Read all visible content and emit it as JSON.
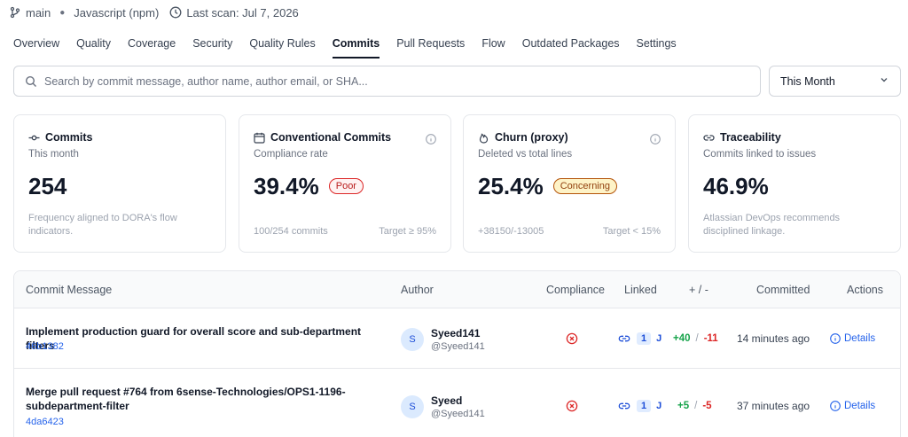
{
  "meta": {
    "branch": "main",
    "language": "Javascript (npm)",
    "last_scan": "Last scan: Jul 7, 2026"
  },
  "tabs": [
    {
      "label": "Overview"
    },
    {
      "label": "Quality"
    },
    {
      "label": "Coverage"
    },
    {
      "label": "Security"
    },
    {
      "label": "Quality Rules"
    },
    {
      "label": "Commits",
      "active": true
    },
    {
      "label": "Pull Requests"
    },
    {
      "label": "Flow"
    },
    {
      "label": "Outdated Packages"
    },
    {
      "label": "Settings"
    }
  ],
  "search": {
    "placeholder": "Search by commit message, author name, author email, or SHA...",
    "value": ""
  },
  "period": {
    "selected": "This Month"
  },
  "cards": {
    "commits": {
      "title": "Commits",
      "subtitle": "This month",
      "value": "254",
      "note": "Frequency aligned to DORA's flow indicators."
    },
    "conventional": {
      "title": "Conventional Commits",
      "subtitle": "Compliance rate",
      "value": "39.4%",
      "badge": "Poor",
      "foot_left": "100/254 commits",
      "foot_right": "Target ≥ 95%"
    },
    "churn": {
      "title": "Churn (proxy)",
      "subtitle": "Deleted vs total lines",
      "value": "25.4%",
      "badge": "Concerning",
      "foot_left": "+38150/-13005",
      "foot_right": "Target < 15%"
    },
    "traceability": {
      "title": "Traceability",
      "subtitle": "Commits linked to issues",
      "value": "46.9%",
      "note": "Atlassian DevOps recommends disciplined linkage."
    }
  },
  "table": {
    "headers": {
      "message": "Commit Message",
      "author": "Author",
      "compliance": "Compliance",
      "linked": "Linked",
      "churn": "+ / -",
      "committed": "Committed",
      "actions": "Actions"
    },
    "rows": [
      {
        "message": "Implement production guard for overall score and sub-department filters",
        "sha": "46b1382",
        "avatar": "S",
        "author": "Syeed141",
        "handle": "@Syeed141",
        "linked_count": "1",
        "linked_tag": "J",
        "additions": "+40",
        "slash": "/",
        "deletions": "-11",
        "committed": "14 minutes ago",
        "action": "Details"
      },
      {
        "message": "Merge pull request #764 from 6sense-Technologies/OPS1-1196-subdepartment-filter",
        "sha": "4da6423",
        "avatar": "S",
        "author": "Syeed",
        "handle": "@Syeed141",
        "linked_count": "1",
        "linked_tag": "J",
        "additions": "+5",
        "slash": "/",
        "deletions": "-5",
        "committed": "37 minutes ago",
        "action": "Details"
      }
    ]
  },
  "colors": {
    "accent": "#2563eb",
    "poor": "#dc2626",
    "concerning": "#b45309",
    "additions": "#16a34a",
    "deletions": "#dc2626"
  },
  "icons": {
    "branch": "git-branch-icon",
    "clock": "clock-icon",
    "search": "search-icon",
    "chevron": "chevron-down-icon",
    "commit": "git-commit-icon",
    "calendar": "calendar-icon",
    "flame": "flame-icon",
    "link": "link-icon",
    "info": "info-icon",
    "error": "x-circle-icon"
  }
}
